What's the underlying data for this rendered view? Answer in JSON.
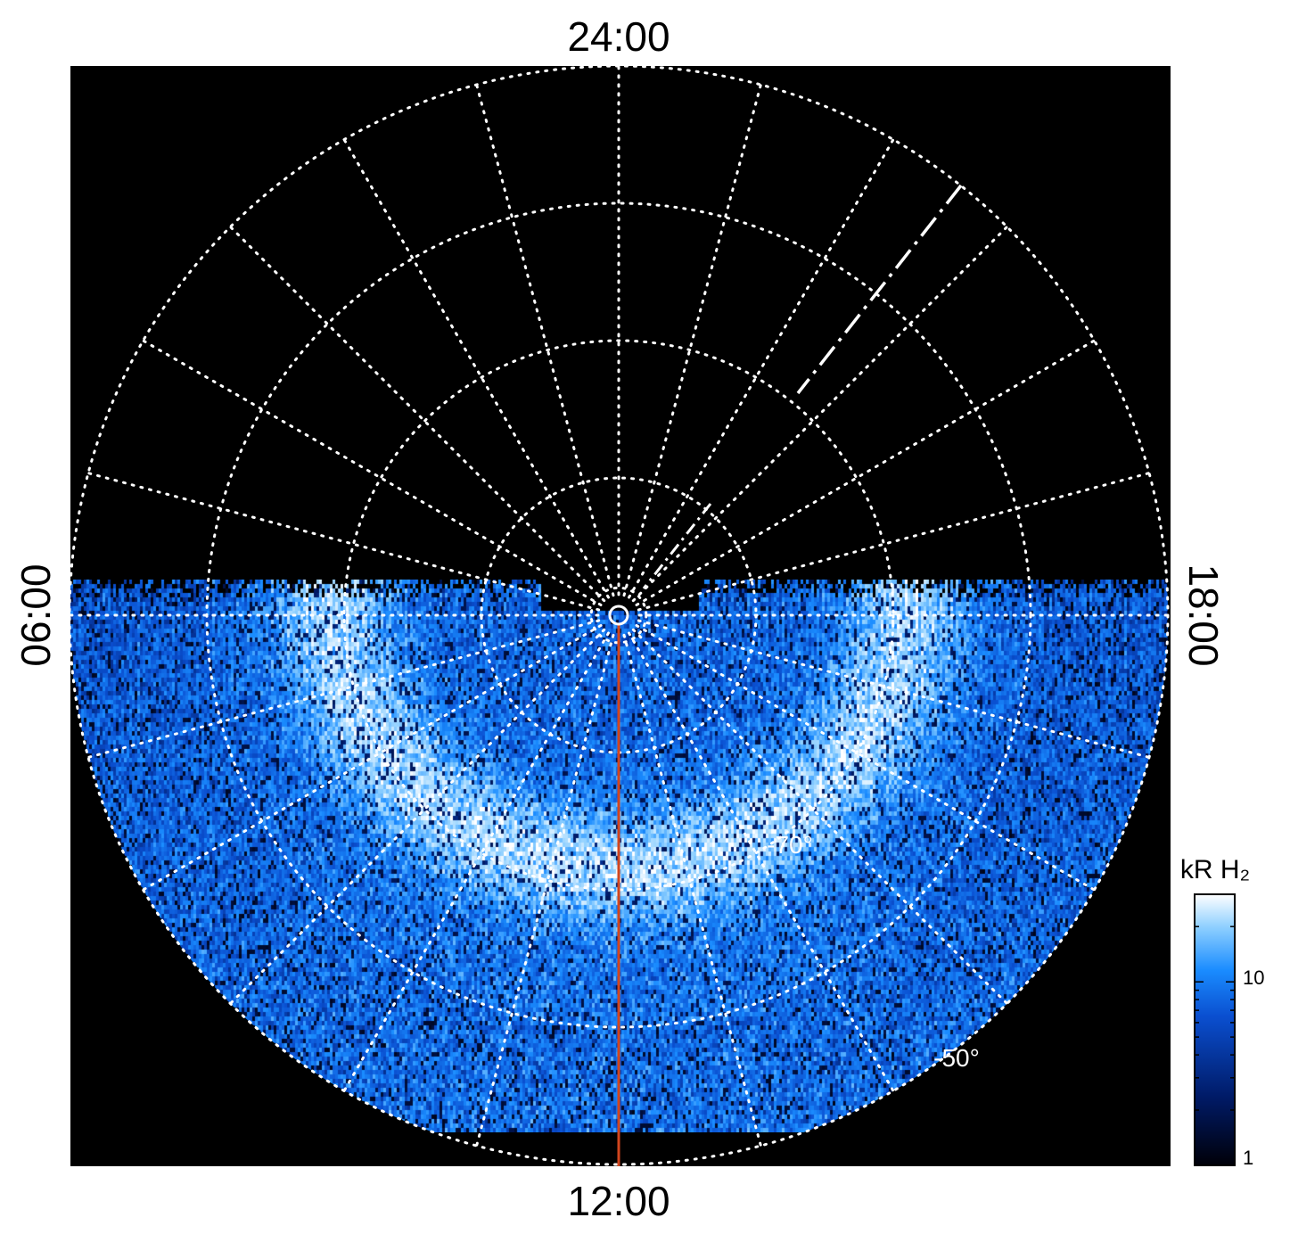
{
  "chart_data": {
    "type": "heatmap",
    "projection": "polar",
    "hemisphere_view": "south",
    "local_time_labels": {
      "top": "24:00",
      "bottom": "12:00",
      "left": "06:00",
      "right": "18:00"
    },
    "latitude_labels": [
      "-70°",
      "-50°"
    ],
    "latitude_circles_deg_from_pole": [
      2,
      10,
      20,
      30,
      40
    ],
    "meridian_spacing_hours": 1,
    "colorbar": {
      "title": "kR H₂",
      "scale": "log",
      "range": [
        1,
        30
      ],
      "ticks": [
        1,
        10
      ],
      "tick_labels": [
        "1",
        "10"
      ],
      "colors": [
        "#000008",
        "#001a66",
        "#0a4fd0",
        "#1a8cff",
        "#8fd0ff",
        "#ffffff"
      ]
    },
    "grid": true,
    "coverage": "dayside hemisphere (06:00 through 12:00 to 18:00)",
    "overlays": [
      {
        "name": "",
        "color": "#d2451e",
        "local_time": "12:00"
      },
      {
        "name": "",
        "color": "#ffffff",
        "style": "dash-dot",
        "local_time": "~20:30"
      }
    ]
  }
}
